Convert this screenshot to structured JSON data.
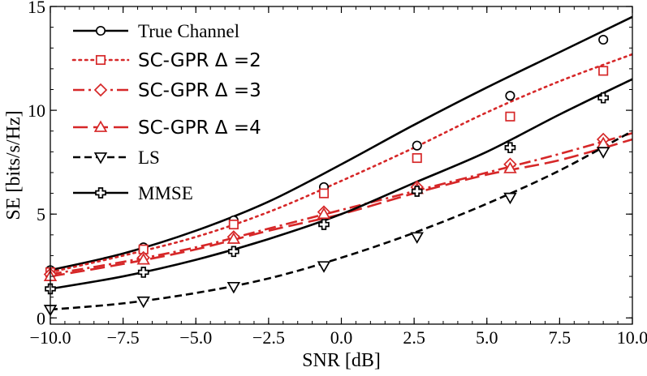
{
  "chart_data": {
    "type": "line",
    "xlabel": "SNR [dB]",
    "ylabel": "SE [bits/s/Hz]",
    "xlim": [
      -10.0,
      10.0
    ],
    "ylim": [
      -0.3,
      15.0
    ],
    "x_ticks": [
      -10.0,
      -7.5,
      -5.0,
      -2.5,
      0.0,
      2.5,
      5.0,
      7.5,
      10.0
    ],
    "x_tick_labels": [
      "−10.0",
      "−7.5",
      "−5.0",
      "−2.5",
      "0.0",
      "2.5",
      "5.0",
      "7.5",
      "10.0"
    ],
    "y_ticks": [
      0,
      5,
      10,
      15
    ],
    "y_tick_labels": [
      "0",
      "5",
      "10",
      "15"
    ],
    "grid": false,
    "legend_position": "top-left",
    "series": [
      {
        "name": "True Channel",
        "color": "#000000",
        "line_style": "solid",
        "marker": "circle",
        "x": [
          -10.0,
          -7.5,
          -5.0,
          -2.5,
          0.0,
          2.5,
          5.0,
          7.5,
          10.0
        ],
        "y": [
          2.3,
          3.1,
          4.2,
          5.6,
          7.4,
          9.3,
          11.1,
          12.8,
          14.5
        ],
        "marker_x": [
          -10.0,
          -6.8,
          -3.7,
          -0.6,
          2.6,
          5.8,
          9.0
        ],
        "marker_y": [
          2.3,
          3.4,
          4.7,
          6.3,
          8.3,
          10.7,
          13.4
        ]
      },
      {
        "name": "SC-GPR Δ =2",
        "color": "#d62728",
        "line_style": "dotted",
        "marker": "square",
        "x": [
          -10.0,
          -7.5,
          -5.0,
          -2.5,
          0.0,
          2.5,
          5.0,
          7.5,
          10.0
        ],
        "y": [
          2.2,
          3.0,
          3.9,
          5.1,
          6.6,
          8.2,
          9.9,
          11.4,
          12.7
        ],
        "marker_x": [
          -10.0,
          -6.8,
          -3.7,
          -0.6,
          2.6,
          5.8,
          9.0
        ],
        "marker_y": [
          2.2,
          3.3,
          4.5,
          6.0,
          7.7,
          9.7,
          11.9
        ]
      },
      {
        "name": "SC-GPR Δ =3",
        "color": "#d62728",
        "line_style": "dashdot",
        "marker": "diamond",
        "x": [
          -10.0,
          -7.5,
          -5.0,
          -2.5,
          0.0,
          2.5,
          5.0,
          7.5,
          10.0
        ],
        "y": [
          2.1,
          2.7,
          3.4,
          4.3,
          5.2,
          6.1,
          7.0,
          7.9,
          8.9
        ],
        "marker_x": [
          -10.0,
          -6.8,
          -3.7,
          -0.6,
          2.6,
          5.8,
          9.0
        ],
        "marker_y": [
          2.1,
          2.9,
          3.9,
          5.1,
          6.3,
          7.4,
          8.6
        ]
      },
      {
        "name": "SC-GPR Δ =4",
        "color": "#d62728",
        "line_style": "longdash",
        "marker": "triangle-up",
        "x": [
          -10.0,
          -7.5,
          -5.0,
          -2.5,
          0.0,
          2.5,
          5.0,
          7.5,
          10.0
        ],
        "y": [
          2.0,
          2.6,
          3.3,
          4.2,
          5.0,
          6.0,
          6.9,
          7.6,
          8.6
        ],
        "marker_x": [
          -10.0,
          -6.8,
          -3.7,
          -0.6,
          2.6,
          5.8,
          9.0
        ],
        "marker_y": [
          2.0,
          2.8,
          3.8,
          5.0,
          6.2,
          7.2,
          8.4
        ]
      },
      {
        "name": "LS",
        "color": "#000000",
        "line_style": "dashed",
        "marker": "triangle-down",
        "x": [
          -10.0,
          -7.5,
          -5.0,
          -2.5,
          0.0,
          2.5,
          5.0,
          7.5,
          10.0
        ],
        "y": [
          0.4,
          0.7,
          1.2,
          1.9,
          2.9,
          4.1,
          5.5,
          7.1,
          9.0
        ],
        "marker_x": [
          -10.0,
          -6.8,
          -3.7,
          -0.6,
          2.6,
          5.8,
          9.0
        ],
        "marker_y": [
          0.4,
          0.8,
          1.5,
          2.5,
          3.9,
          5.8,
          8.0
        ]
      },
      {
        "name": "MMSE",
        "color": "#000000",
        "line_style": "solid",
        "marker": "plus-square",
        "x": [
          -10.0,
          -7.5,
          -5.0,
          -2.5,
          0.0,
          2.5,
          5.0,
          7.5,
          10.0
        ],
        "y": [
          1.4,
          2.0,
          2.8,
          3.8,
          5.0,
          6.5,
          8.0,
          9.8,
          11.5
        ],
        "marker_x": [
          -10.0,
          -6.8,
          -3.7,
          -0.6,
          2.6,
          5.8,
          9.0
        ],
        "marker_y": [
          1.4,
          2.2,
          3.2,
          4.5,
          6.1,
          8.2,
          10.6
        ]
      }
    ]
  }
}
